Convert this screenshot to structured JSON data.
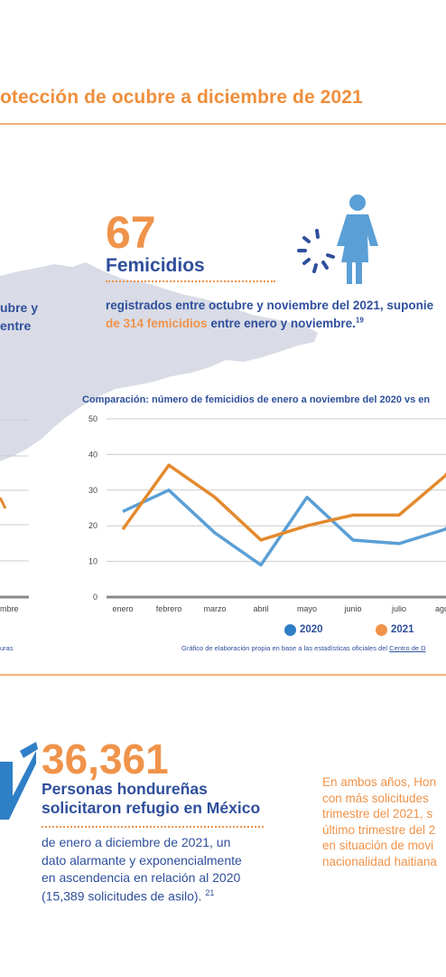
{
  "header": {
    "title": "otección de ocubre a diciembre de 2021"
  },
  "left_fragment": {
    "line1": "ubre y",
    "line2": "entre"
  },
  "femicidios": {
    "number": "67",
    "label": "Femicidios",
    "desc_line1": "registrados entre octubre y noviembre del 2021, suponie",
    "desc_highlight": "de 314 femicidios",
    "desc_rest": " entre enero y noviembre.",
    "desc_ref": "19"
  },
  "chart_data": {
    "type": "line",
    "title": "Comparación: número de femicidios de enero a noviembre del 2020 vs en",
    "categories": [
      "enero",
      "febrero",
      "marzo",
      "abril",
      "mayo",
      "junio",
      "julio",
      "agosto"
    ],
    "categories_display": [
      "enero",
      "febrero",
      "marzo",
      "abril",
      "mayo",
      "junio",
      "julio",
      "agost"
    ],
    "yticks": [
      0,
      10,
      20,
      30,
      40,
      50
    ],
    "ylim": [
      0,
      50
    ],
    "series": [
      {
        "name": "2020",
        "color": "#5a9fd6",
        "values": [
          24,
          30,
          18,
          9,
          28,
          16,
          15,
          19
        ]
      },
      {
        "name": "2021",
        "color": "#e38a2e",
        "values": [
          19,
          37,
          28,
          16,
          20,
          23,
          23,
          34
        ]
      }
    ],
    "legend_placement": "bottom",
    "source": "Gráfico de elaboración propia en base a las estadísticas oficiales del",
    "source_link": "Centro de D"
  },
  "left_chart": {
    "tick_label": "mbre",
    "source_fragment": "uras",
    "values": [
      20.5,
      19
    ]
  },
  "refugio": {
    "number": "36,361",
    "label_line1": "Personas hondureñas",
    "label_line2": "solicitaron refugio en México",
    "body_line1": "de enero a diciembre de 2021, un",
    "body_line2": "dato alarmante y exponencialmente",
    "body_line3": "en ascendencia en relación al 2020",
    "body_line4": "(15,389 solicitudes de asilo).",
    "body_ref": "21"
  },
  "right_note": {
    "line1": "En ambos años, Hon",
    "line2": "con más solicitudes",
    "line3": "trimestre del 2021, s",
    "line4": "último trimestre del 2",
    "line5": "en situación de movi",
    "line6": "nacionalidad haitiana"
  },
  "colors": {
    "orange": "#f0934a",
    "navy": "#2f4f9c",
    "blue_2020": "#5a9fd6",
    "orange_2021": "#e38a2e",
    "map_gray": "#d9dce6"
  }
}
